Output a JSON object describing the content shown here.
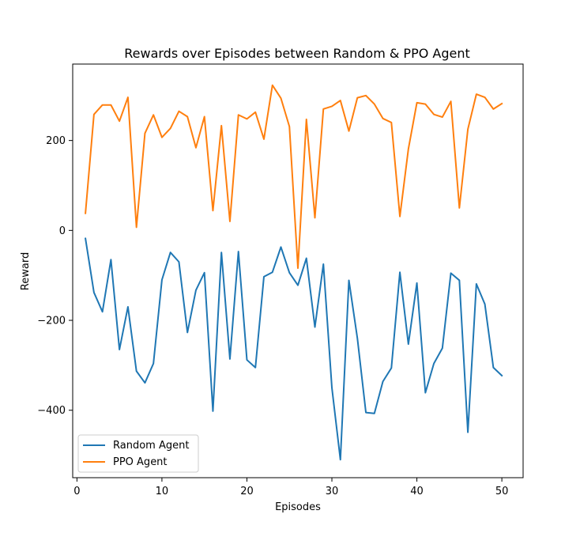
{
  "chart_data": {
    "type": "line",
    "title": "Rewards over Episodes between Random & PPO Agent",
    "xlabel": "Episodes",
    "ylabel": "Reward",
    "xlim": [
      -0.5,
      52.5
    ],
    "ylim": [
      -550,
      370
    ],
    "xticks": [
      0,
      10,
      20,
      30,
      40,
      50
    ],
    "yticks": [
      -400,
      -200,
      0,
      200
    ],
    "grid": false,
    "legend_position": "lower-left",
    "x": [
      1,
      2,
      3,
      4,
      5,
      6,
      7,
      8,
      9,
      10,
      11,
      12,
      13,
      14,
      15,
      16,
      17,
      18,
      19,
      20,
      21,
      22,
      23,
      24,
      25,
      26,
      27,
      28,
      29,
      30,
      31,
      32,
      33,
      34,
      35,
      36,
      37,
      38,
      39,
      40,
      41,
      42,
      43,
      44,
      45,
      46,
      47,
      48,
      49,
      50
    ],
    "series": [
      {
        "name": "Random Agent",
        "color": "#1f77b4",
        "values": [
          -18,
          -138,
          -181,
          -65,
          -265,
          -170,
          -313,
          -339,
          -296,
          -110,
          -49,
          -70,
          -227,
          -133,
          -94,
          -402,
          -49,
          -286,
          -47,
          -288,
          -305,
          -103,
          -93,
          -37,
          -94,
          -122,
          -62,
          -215,
          -75,
          -350,
          -510,
          -111,
          -240,
          -405,
          -407,
          -336,
          -306,
          -93,
          -253,
          -117,
          -361,
          -296,
          -262,
          -95,
          -111,
          -449,
          -119,
          -164,
          -305,
          -323
        ]
      },
      {
        "name": "PPO Agent",
        "color": "#ff7f0e",
        "values": [
          38,
          258,
          279,
          279,
          243,
          296,
          7,
          216,
          257,
          207,
          227,
          265,
          253,
          184,
          253,
          44,
          233,
          20,
          257,
          248,
          263,
          203,
          323,
          294,
          231,
          -84,
          247,
          28,
          270,
          276,
          289,
          221,
          295,
          300,
          281,
          249,
          240,
          31,
          181,
          284,
          281,
          258,
          252,
          287,
          50,
          225,
          303,
          296,
          270,
          282
        ]
      }
    ]
  }
}
